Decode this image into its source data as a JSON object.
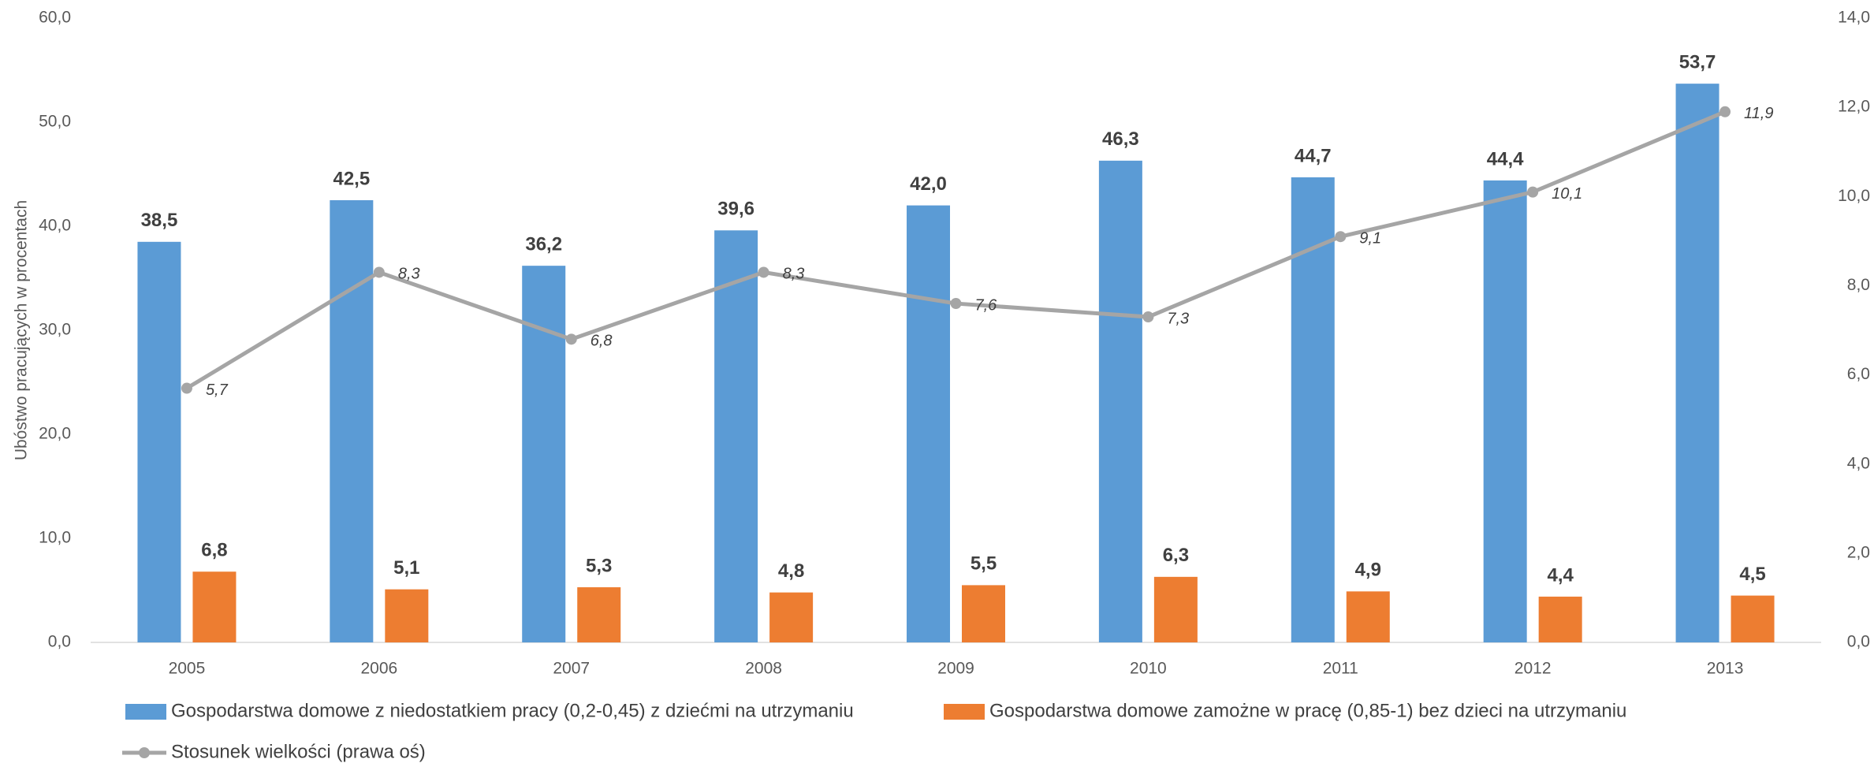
{
  "chart_data": {
    "type": "bar",
    "y_label": "Ubóstwo pracujących w procentach",
    "categories": [
      "2005",
      "2006",
      "2007",
      "2008",
      "2009",
      "2010",
      "2011",
      "2012",
      "2013"
    ],
    "series": [
      {
        "name": "Gospodarstwa domowe z niedostatkiem pracy (0,2-0,45) z dziećmi na utrzymaniu",
        "type": "bar",
        "color": "#5b9bd5",
        "values": [
          38.5,
          42.5,
          36.2,
          39.6,
          42.0,
          46.3,
          44.7,
          44.4,
          53.7
        ],
        "value_labels": [
          "38,5",
          "42,5",
          "36,2",
          "39,6",
          "42,0",
          "46,3",
          "44,7",
          "44,4",
          "53,7"
        ]
      },
      {
        "name": "Gospodarstwa domowe zamożne w pracę (0,85-1) bez dzieci na utrzymaniu",
        "type": "bar",
        "color": "#ed7d31",
        "values": [
          6.8,
          5.1,
          5.3,
          4.8,
          5.5,
          6.3,
          4.9,
          4.4,
          4.5
        ],
        "value_labels": [
          "6,8",
          "5,1",
          "5,3",
          "4,8",
          "5,5",
          "6,3",
          "4,9",
          "4,4",
          "4,5"
        ]
      },
      {
        "name": "Stosunek wielkości (prawa oś)",
        "type": "line",
        "axis": "y2",
        "color": "#a5a5a5",
        "values": [
          5.7,
          8.3,
          6.8,
          8.3,
          7.6,
          7.3,
          9.1,
          10.1,
          11.9
        ],
        "value_labels": [
          "5,7",
          "8,3",
          "6,8",
          "8,3",
          "7,6",
          "7,3",
          "9,1",
          "10,1",
          "11,9"
        ]
      }
    ],
    "ylim": [
      0,
      60
    ],
    "yticks": [
      {
        "value": 0,
        "label": "0,0"
      },
      {
        "value": 10,
        "label": "10,0"
      },
      {
        "value": 20,
        "label": "20,0"
      },
      {
        "value": 30,
        "label": "30,0"
      },
      {
        "value": 40,
        "label": "40,0"
      },
      {
        "value": 50,
        "label": "50,0"
      },
      {
        "value": 60,
        "label": "60,0"
      }
    ],
    "y2lim": [
      0,
      14
    ],
    "y2ticks": [
      {
        "value": 0,
        "label": "0,0"
      },
      {
        "value": 2,
        "label": "2,0"
      },
      {
        "value": 4,
        "label": "4,0"
      },
      {
        "value": 6,
        "label": "6,0"
      },
      {
        "value": 8,
        "label": "8,0"
      },
      {
        "value": 10,
        "label": "10,0"
      },
      {
        "value": 12,
        "label": "12,0"
      },
      {
        "value": 14,
        "label": "14,0"
      }
    ],
    "grid": false,
    "legend": "bottom"
  }
}
